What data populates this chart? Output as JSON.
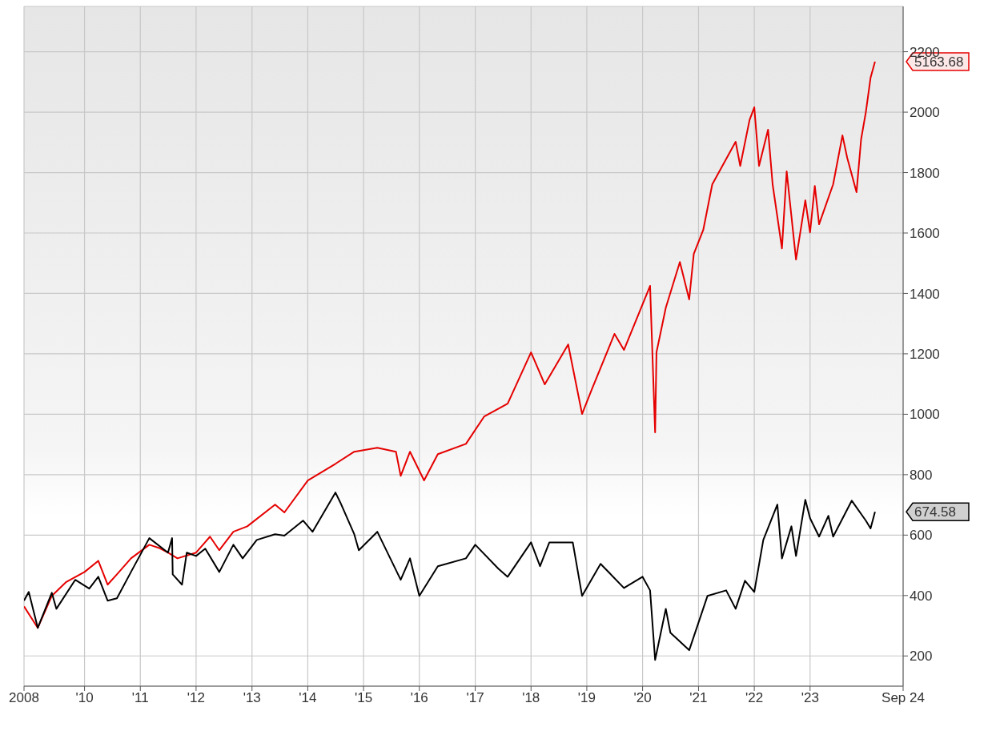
{
  "chart_data": {
    "type": "line",
    "line_style": "solid",
    "grid": true,
    "xlim": [
      "2008-12",
      "2024-09"
    ],
    "xticks": [
      {
        "value": "2008-12",
        "label": "2008"
      },
      {
        "value": "2010",
        "label": "'10"
      },
      {
        "value": "2011",
        "label": "'11"
      },
      {
        "value": "2012",
        "label": "'12"
      },
      {
        "value": "2013",
        "label": "'13"
      },
      {
        "value": "2014",
        "label": "'14"
      },
      {
        "value": "2015",
        "label": "'15"
      },
      {
        "value": "2016",
        "label": "'16"
      },
      {
        "value": "2017",
        "label": "'17"
      },
      {
        "value": "2018",
        "label": "'18"
      },
      {
        "value": "2019",
        "label": "'19"
      },
      {
        "value": "2020",
        "label": "'20"
      },
      {
        "value": "2021",
        "label": "'21"
      },
      {
        "value": "2022",
        "label": "'22"
      },
      {
        "value": "2023",
        "label": "'23"
      },
      {
        "value": "2024-09",
        "label": "Sep 24"
      }
    ],
    "ylim": [
      100,
      2350
    ],
    "yticks": [
      200,
      400,
      600,
      800,
      1000,
      1200,
      1400,
      1600,
      1800,
      2000,
      2200
    ],
    "series": [
      {
        "color": "#e50000",
        "x": [
          "2008-12",
          "2009-03",
          "2009-06",
          "2009-09",
          "2010-01",
          "2010-04",
          "2010-06",
          "2010-08",
          "2010-11",
          "2011-03",
          "2011-05",
          "2011-07",
          "2011-09",
          "2012-01",
          "2012-04",
          "2012-06",
          "2012-09",
          "2012-12",
          "2013-06",
          "2013-08",
          "2014-01",
          "2014-07",
          "2014-11",
          "2015-04",
          "2015-08",
          "2015-09",
          "2015-11",
          "2016-02",
          "2016-05",
          "2016-11",
          "2017-03",
          "2017-08",
          "2018-01",
          "2018-04",
          "2018-09",
          "2018-12",
          "2019-02",
          "2019-07",
          "2019-09",
          "2020-02-19",
          "2020-03-23",
          "2020-04",
          "2020-06",
          "2020-09",
          "2020-11",
          "2020-12",
          "2021-02",
          "2021-04",
          "2021-09",
          "2021-10",
          "2021-12",
          "2022-01",
          "2022-02",
          "2022-04",
          "2022-05",
          "2022-07",
          "2022-08",
          "2022-10",
          "2022-12",
          "2023-01",
          "2023-02",
          "2023-03",
          "2023-06",
          "2023-08",
          "2023-09",
          "2023-11",
          "2023-12",
          "2024-01",
          "2024-02",
          "2024-03"
        ],
        "values": [
          364,
          293,
          399,
          444,
          478,
          515,
          436,
          470,
          523,
          568,
          558,
          542,
          523,
          542,
          595,
          550,
          611,
          629,
          701,
          675,
          781,
          836,
          876,
          889,
          876,
          796,
          876,
          781,
          868,
          902,
          993,
          1035,
          1205,
          1099,
          1231,
          1001,
          1080,
          1266,
          1213,
          1425,
          940,
          1205,
          1353,
          1504,
          1380,
          1531,
          1610,
          1761,
          1902,
          1822,
          1974,
          2016,
          1822,
          1942,
          1761,
          1549,
          1804,
          1512,
          1708,
          1602,
          1756,
          1629,
          1761,
          1923,
          1849,
          1735,
          1910,
          2000,
          2114,
          2167
        ]
      },
      {
        "color": "#000000",
        "x": [
          "2008-12",
          "2009-01",
          "2009-03",
          "2009-06",
          "2009-07",
          "2009-11",
          "2010-02",
          "2010-04",
          "2010-06",
          "2010-08",
          "2010-11",
          "2011-03",
          "2011-07",
          "2011-07-28",
          "2011-08",
          "2011-10",
          "2011-11",
          "2012-01",
          "2012-03",
          "2012-06",
          "2012-09",
          "2012-11",
          "2013-02",
          "2013-06",
          "2013-08",
          "2013-12",
          "2014-02",
          "2014-07",
          "2014-08",
          "2014-11",
          "2014-12",
          "2015-04",
          "2015-09",
          "2015-11",
          "2016-01",
          "2016-05",
          "2016-11",
          "2017-01",
          "2017-06",
          "2017-08",
          "2018-01",
          "2018-03",
          "2018-05",
          "2018-10",
          "2018-12",
          "2019-04",
          "2019-09",
          "2020-01",
          "2020-02-19",
          "2020-03-23",
          "2020-06",
          "2020-07",
          "2020-11",
          "2021-03",
          "2021-07",
          "2021-09",
          "2021-11",
          "2022-01",
          "2022-03",
          "2022-06",
          "2022-07",
          "2022-09",
          "2022-10",
          "2022-12",
          "2023-01",
          "2023-03",
          "2023-05",
          "2023-06",
          "2023-10",
          "2024-01",
          "2024-02",
          "2024-03"
        ],
        "values": [
          383,
          412,
          293,
          409,
          356,
          452,
          423,
          462,
          383,
          391,
          478,
          590,
          542,
          590,
          470,
          436,
          542,
          531,
          555,
          478,
          568,
          523,
          584,
          603,
          598,
          648,
          611,
          741,
          709,
          603,
          550,
          611,
          452,
          523,
          399,
          497,
          523,
          568,
          489,
          462,
          576,
          497,
          576,
          576,
          399,
          505,
          425,
          462,
          417,
          187,
          356,
          277,
          219,
          399,
          417,
          356,
          449,
          412,
          584,
          701,
          523,
          629,
          531,
          717,
          656,
          595,
          664,
          595,
          714,
          648,
          622,
          677
        ]
      }
    ],
    "annotations": [
      "5163.68",
      "674.58"
    ]
  }
}
